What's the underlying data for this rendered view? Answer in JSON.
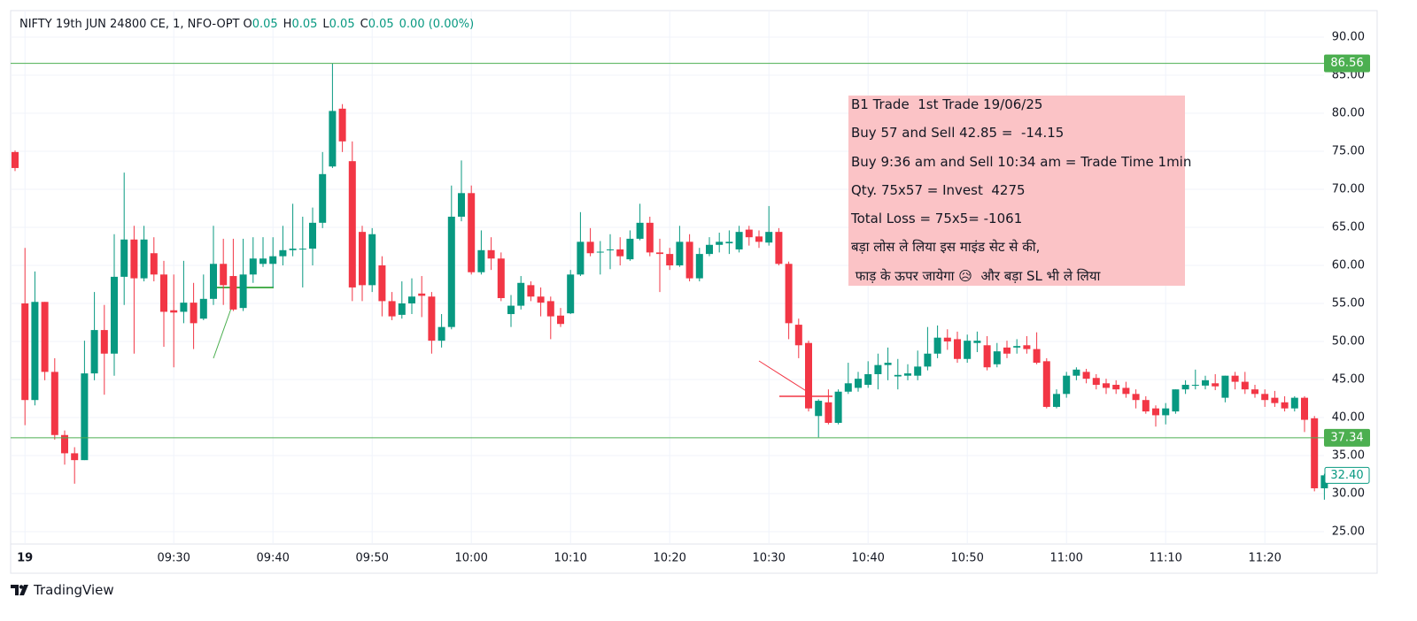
{
  "chart_data": {
    "type": "candlestick",
    "symbol": "NIFTY 19th JUN 24800 CE, 1, NFO-OPT",
    "ohlc_legend": [
      {
        "label": "O",
        "value": 0.05
      },
      {
        "label": "H",
        "value": 0.05
      },
      {
        "label": "L",
        "value": 0.05
      },
      {
        "label": "C",
        "value": 0.05
      }
    ],
    "change": "0.00 (0.00%)",
    "brand": "TradingView",
    "up_color": "#089981",
    "down_color": "#f23645",
    "grid": true,
    "ylim": [
      23.37,
      93.49
    ],
    "yticks": [
      {
        "value": 25,
        "label": "25.00"
      },
      {
        "value": 30,
        "label": "30.00"
      },
      {
        "value": 35,
        "label": "35.00"
      },
      {
        "value": 40,
        "label": "40.00"
      },
      {
        "value": 45,
        "label": "45.00"
      },
      {
        "value": 50,
        "label": "50.00"
      },
      {
        "value": 55,
        "label": "55.00"
      },
      {
        "value": 60,
        "label": "60.00"
      },
      {
        "value": 65,
        "label": "65.00"
      },
      {
        "value": 70,
        "label": "70.00"
      },
      {
        "value": 75,
        "label": "75.00"
      },
      {
        "value": 80,
        "label": "80.00"
      },
      {
        "value": 85,
        "label": "85.00"
      },
      {
        "value": 90,
        "label": "90.00"
      }
    ],
    "hlines": [
      {
        "value": 86.56,
        "color": "#4caf50"
      },
      {
        "value": 37.34,
        "color": "#4caf50"
      }
    ],
    "last_price": {
      "value": 32.4,
      "label": "32.40",
      "color": "#089981"
    },
    "annotation": {
      "color": "#fbc3c6",
      "lines": [
        "B1 Trade  1st Trade 19/06/25",
        "Buy 57 and Sell 42.85 =  -14.15",
        "Buy 9:36 am and Sell 10:34 am = Trade Time 1min",
        "Qty. 75x57 = Invest  4275",
        "Total Loss = 75x5= -1061",
        "बड़ा लोस ले लिया इस माइंड सेट से की,",
        " फाड़ के ऊपर जायेगा 😥  और बड़ा SL भी ले लिया"
      ]
    },
    "categories": [
      null,
      "19",
      null,
      null,
      null,
      null,
      null,
      null,
      null,
      null,
      null,
      null,
      null,
      null,
      null,
      null,
      "09:30",
      null,
      null,
      null,
      null,
      null,
      null,
      null,
      null,
      null,
      "09:40",
      null,
      null,
      null,
      null,
      null,
      null,
      null,
      null,
      null,
      "09:50",
      null,
      null,
      null,
      null,
      null,
      null,
      null,
      null,
      null,
      "10:00",
      null,
      null,
      null,
      null,
      null,
      null,
      null,
      null,
      null,
      "10:10",
      null,
      null,
      null,
      null,
      null,
      null,
      null,
      null,
      null,
      "10:20",
      null,
      null,
      null,
      null,
      null,
      null,
      null,
      null,
      null,
      "10:30",
      null,
      null,
      null,
      null,
      null,
      null,
      null,
      null,
      null,
      "10:40",
      null,
      null,
      null,
      null,
      null,
      null,
      null,
      null,
      null,
      "10:50",
      null,
      null,
      null,
      null,
      null,
      null,
      null,
      null,
      null,
      "11:00",
      null,
      null,
      null,
      null,
      null,
      null,
      null,
      null,
      null,
      "11:10",
      null,
      null,
      null,
      null,
      null,
      null,
      null,
      null,
      null,
      "11:20",
      null,
      null,
      null,
      null,
      null,
      null
    ],
    "open": [
      74.9,
      55,
      42.3,
      55.2,
      46,
      37.7,
      35.3,
      34.4,
      45.8,
      51.5,
      48.4,
      58.5,
      63.4,
      58.3,
      61.6,
      58.8,
      54.1,
      53.9,
      55.1,
      53,
      55.6,
      60.2,
      58.6,
      54.4,
      58.8,
      60.2,
      60.2,
      61.2,
      62,
      62.1,
      62.2,
      65.6,
      73,
      80.6,
      73.7,
      64.4,
      57.4,
      60,
      55.3,
      53.5,
      55,
      56.3,
      55.9,
      50.1,
      51.9,
      66.4,
      69.5,
      59.1,
      62,
      60.9,
      53.6,
      54.7,
      57.4,
      55.9,
      55.3,
      53.4,
      53.7,
      58.8,
      63.1,
      61.7,
      62,
      62.1,
      60.8,
      63.5,
      65.6,
      61.7,
      61.5,
      60,
      63.1,
      58.3,
      61.5,
      62.7,
      62.9,
      62.1,
      64.7,
      63.8,
      63,
      64.4,
      60.2,
      52.2,
      49.8,
      40.2,
      42,
      39.3,
      43.4,
      43.9,
      44.3,
      45.7,
      46.9,
      45.4,
      45.5,
      45.5,
      46.7,
      48.4,
      50.5,
      50.3,
      47.7,
      49.8,
      49.5,
      47,
      49.2,
      49.2,
      49.5,
      49,
      47.4,
      41.4,
      43.1,
      45.5,
      46,
      45.2,
      44.5,
      44.3,
      43.9,
      43.1,
      42.3,
      41.2,
      40.3,
      40.8,
      43.7,
      44.2,
      44.2,
      44.5,
      42.6,
      45.5,
      44.7,
      43.7,
      43.1,
      42.6,
      42,
      41.2,
      42.6,
      39.9,
      30.7
    ],
    "high": [
      75.1,
      62.3,
      59.2,
      55.2,
      47.8,
      38.3,
      36.1,
      50.1,
      56.5,
      54.8,
      64.1,
      72.2,
      65.2,
      65.2,
      63.7,
      60.6,
      58.8,
      60.6,
      57.7,
      58.8,
      65.2,
      63.5,
      63.5,
      63.5,
      63.7,
      63.7,
      63.7,
      65.2,
      68.1,
      66.4,
      67.6,
      74.9,
      86.56,
      81.2,
      76.3,
      65.2,
      64.9,
      61.2,
      56.5,
      57.9,
      58.3,
      58.6,
      56.5,
      53.6,
      70.5,
      73.8,
      70.5,
      64.6,
      63.7,
      61.7,
      56.1,
      58.6,
      57.9,
      57.1,
      55.9,
      54.4,
      59.4,
      67,
      64.9,
      63.2,
      64.1,
      63.7,
      64.6,
      68.1,
      66.4,
      63.5,
      62.3,
      65.2,
      64.1,
      62.3,
      63.7,
      64.3,
      64.6,
      65.2,
      65.2,
      64.6,
      67.8,
      64.9,
      60.5,
      53,
      50.1,
      42.4,
      43.7,
      43.7,
      47.2,
      46,
      47.4,
      48.4,
      49.2,
      47.7,
      47,
      48.8,
      51.9,
      52.1,
      51.6,
      51.3,
      50.9,
      51.3,
      50.7,
      49.8,
      50.1,
      50.3,
      50.7,
      51.2,
      47.8,
      43.7,
      46,
      46.6,
      46.4,
      45.7,
      45.1,
      44.9,
      44.7,
      43.7,
      42.8,
      41.6,
      41.9,
      43.7,
      44.9,
      46.3,
      45.5,
      45.7,
      45.5,
      46,
      46,
      44.3,
      43.7,
      43.5,
      42.8,
      42.8,
      42.8,
      40.2,
      32.6
    ],
    "low": [
      72.4,
      39,
      41.6,
      44.9,
      37.1,
      33.8,
      31.3,
      34.4,
      44.9,
      43,
      45.5,
      54.8,
      48.4,
      57.9,
      57.9,
      49.3,
      46.6,
      52.4,
      49,
      52.8,
      54.8,
      54.8,
      54,
      54,
      57.7,
      59.8,
      57.1,
      60,
      61.2,
      57.1,
      60,
      64.9,
      72.8,
      74.9,
      55.3,
      55.3,
      56.5,
      53.3,
      52.8,
      53,
      53.6,
      53.2,
      48.4,
      49.2,
      51.6,
      65.8,
      58.8,
      58.8,
      59.4,
      55.3,
      51.9,
      54.2,
      55.3,
      53.3,
      50.3,
      51.9,
      53.6,
      58.6,
      61.2,
      58.8,
      59.5,
      60,
      60.6,
      63.3,
      61.2,
      56.5,
      59.4,
      59.8,
      57.9,
      57.9,
      61.2,
      61.7,
      61.5,
      61.7,
      62.6,
      62.3,
      62.6,
      60,
      50.3,
      47.8,
      40.8,
      37.4,
      39.1,
      39.1,
      43.1,
      43.4,
      43.9,
      43.7,
      44.9,
      43.7,
      44.9,
      44.9,
      46.2,
      47.8,
      48.9,
      47.2,
      47.2,
      48.6,
      46.2,
      46.6,
      47.8,
      48.4,
      48.4,
      47,
      41.2,
      41.2,
      42.6,
      44.9,
      44.5,
      43.7,
      43.1,
      43.1,
      42.6,
      41.2,
      40.5,
      38.8,
      39.1,
      40.5,
      43.1,
      43.7,
      43.7,
      43.6,
      42,
      43.7,
      43.1,
      42.6,
      41.4,
      41.4,
      40.8,
      40.8,
      38.1,
      30.3,
      29.2
    ],
    "close": [
      72.8,
      42.3,
      55.2,
      46,
      37.7,
      35.3,
      34.4,
      45.8,
      51.5,
      48.4,
      58.5,
      63.4,
      58.3,
      63.4,
      58.8,
      53.9,
      53.8,
      55.1,
      52.4,
      55.6,
      60.2,
      57.4,
      54.2,
      58.8,
      60.9,
      60.9,
      61.2,
      62,
      62.2,
      62.2,
      65.6,
      72,
      80.3,
      76.3,
      57.1,
      57.4,
      64.1,
      55.3,
      53.3,
      55,
      55.9,
      56,
      50.1,
      51.9,
      66.4,
      69.5,
      59.1,
      62,
      60.9,
      55.7,
      54.7,
      57.7,
      55.9,
      55.1,
      53.3,
      52.3,
      58.8,
      63.1,
      61.6,
      61.8,
      62.1,
      61.2,
      63.5,
      65.6,
      61.7,
      61.5,
      60,
      63.1,
      58.3,
      61.5,
      62.7,
      63.1,
      63.1,
      64.4,
      63.7,
      63.1,
      64.4,
      60.2,
      52.4,
      49.5,
      41.2,
      42.2,
      39.3,
      43.4,
      44.5,
      45.1,
      45.7,
      46.9,
      47.2,
      45.6,
      45.8,
      46.7,
      48.4,
      50.5,
      50,
      47.7,
      50.1,
      50.1,
      46.6,
      48.7,
      48.4,
      49.4,
      49,
      47.2,
      41.4,
      43.1,
      45.5,
      46.3,
      45.1,
      44.3,
      43.9,
      43.7,
      43.1,
      42.3,
      40.8,
      40.3,
      41.2,
      43.7,
      44.3,
      44.3,
      44.9,
      44.1,
      45.5,
      44.7,
      43.7,
      43.1,
      42.3,
      41.9,
      41.2,
      42.6,
      39.7,
      30.7,
      32.4
    ]
  }
}
